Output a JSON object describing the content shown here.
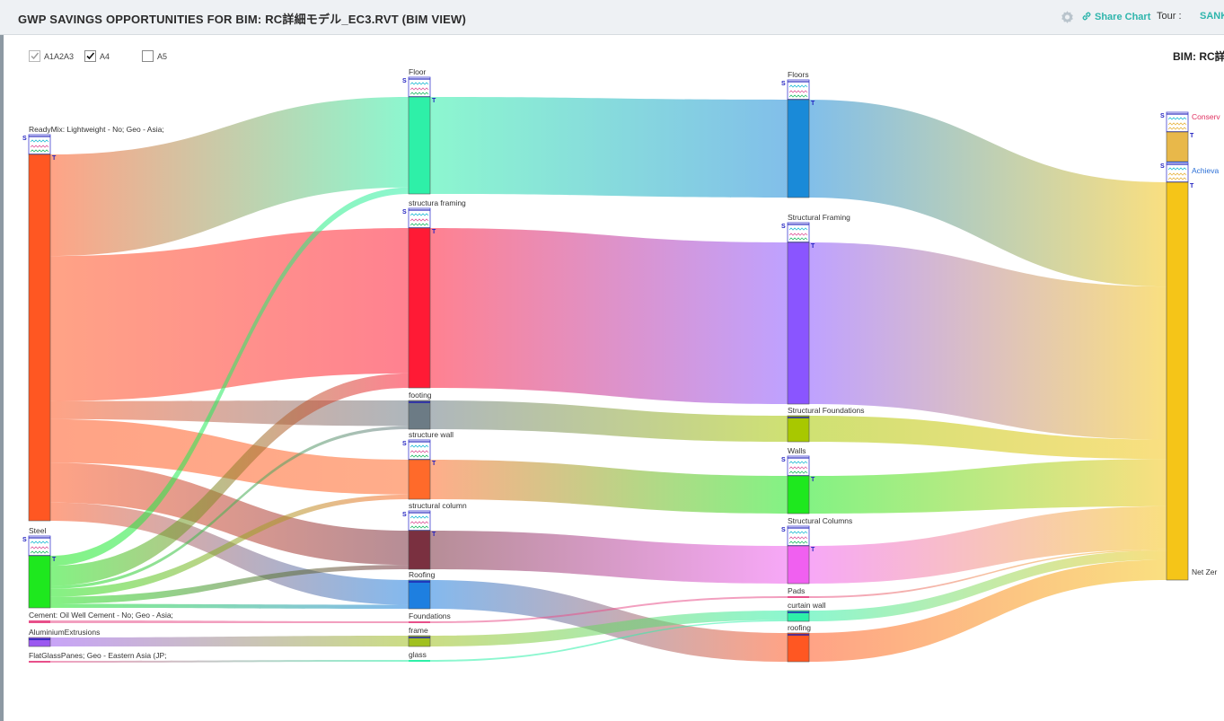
{
  "header": {
    "title": "GWP SAVINGS OPPORTUNITIES FOR BIM: RC詳細モデル_EC3.RVT (BIM VIEW)",
    "share_label": "Share Chart",
    "tour_label": "Tour :",
    "tour_value": "SANK",
    "accent_color": "#2fb5ac"
  },
  "filters": [
    {
      "label": "A1A2A3",
      "checked": true,
      "disabled": true
    },
    {
      "label": "A4",
      "checked": true,
      "disabled": false
    },
    {
      "label": "A5",
      "checked": false,
      "disabled": false
    }
  ],
  "bim_title": "BIM: RC詳",
  "chart_data": {
    "type": "sankey",
    "marker_labels": {
      "source": "S",
      "target": "T"
    },
    "nodes": [
      {
        "id": "readymix",
        "label": "ReadyMix: Lightweight - No; Geo - Asia;",
        "column": 0,
        "color": "#ff5722"
      },
      {
        "id": "steel",
        "label": "Steel",
        "column": 0,
        "color": "#1ee81e"
      },
      {
        "id": "cement",
        "label": "Cement: Oil Well Cement - No; Geo - Asia;",
        "column": 0,
        "color": "#e8508a"
      },
      {
        "id": "alu",
        "label": "AluminiumExtrusions",
        "column": 0,
        "color": "#9b59f0"
      },
      {
        "id": "glass0",
        "label": "FlatGlassPanes; Geo - Eastern Asia (JP;",
        "column": 0,
        "color": "#e8508a"
      },
      {
        "id": "floor",
        "label": "Floor",
        "column": 1,
        "color": "#2ef0a8"
      },
      {
        "id": "sframing",
        "label": "structura framing",
        "column": 1,
        "color": "#ff1a35"
      },
      {
        "id": "footing",
        "label": "footing",
        "column": 1,
        "color": "#6c7b85"
      },
      {
        "id": "swall",
        "label": "structure wall",
        "column": 1,
        "color": "#ff6a2a"
      },
      {
        "id": "scolumn",
        "label": "structural column",
        "column": 1,
        "color": "#7a3040"
      },
      {
        "id": "roofing1",
        "label": "Roofing",
        "column": 1,
        "color": "#1e7fe0"
      },
      {
        "id": "foundations",
        "label": "Foundations",
        "column": 1,
        "color": "#e8508a"
      },
      {
        "id": "frame",
        "label": "frame",
        "column": 1,
        "color": "#a0c020"
      },
      {
        "id": "glass1",
        "label": "glass",
        "column": 1,
        "color": "#2ef0a8"
      },
      {
        "id": "floors",
        "label": "Floors",
        "column": 2,
        "color": "#1a8ad8"
      },
      {
        "id": "sframing2",
        "label": "Structural Framing",
        "column": 2,
        "color": "#8a55ff"
      },
      {
        "id": "sfound",
        "label": "Structural Foundations",
        "column": 2,
        "color": "#a8c800"
      },
      {
        "id": "walls",
        "label": "Walls",
        "column": 2,
        "color": "#1ee81e"
      },
      {
        "id": "scolumns",
        "label": "Structural Columns",
        "column": 2,
        "color": "#f060f0"
      },
      {
        "id": "pads",
        "label": "Pads",
        "column": 2,
        "color": "#e8508a"
      },
      {
        "id": "cwall",
        "label": "curtain wall",
        "column": 2,
        "color": "#2ef0a8"
      },
      {
        "id": "roofing2",
        "label": "roofing",
        "column": 2,
        "color": "#ff5722"
      },
      {
        "id": "conserv",
        "label": "Conserv",
        "column": 3,
        "color": "#e8b84a"
      },
      {
        "id": "achieva",
        "label": "Achieva",
        "column": 3,
        "color": "#2b6fd6"
      },
      {
        "id": "netzero",
        "label": "Net Zer",
        "column": 3,
        "color": "#f5c518"
      }
    ],
    "links": [
      {
        "source": "readymix",
        "target": "floor",
        "value": 14
      },
      {
        "source": "readymix",
        "target": "sframing",
        "value": 20
      },
      {
        "source": "readymix",
        "target": "footing",
        "value": 2.5
      },
      {
        "source": "readymix",
        "target": "swall",
        "value": 6
      },
      {
        "source": "readymix",
        "target": "scolumn",
        "value": 5.5
      },
      {
        "source": "readymix",
        "target": "roofing1",
        "value": 2.5
      },
      {
        "source": "steel",
        "target": "floor",
        "value": 1
      },
      {
        "source": "steel",
        "target": "sframing",
        "value": 2
      },
      {
        "source": "steel",
        "target": "footing",
        "value": 0.3
      },
      {
        "source": "steel",
        "target": "swall",
        "value": 0.8
      },
      {
        "source": "steel",
        "target": "scolumn",
        "value": 0.7
      },
      {
        "source": "steel",
        "target": "roofing1",
        "value": 0.4
      },
      {
        "source": "cement",
        "target": "foundations",
        "value": 0.15
      },
      {
        "source": "alu",
        "target": "frame",
        "value": 1.2
      },
      {
        "source": "glass0",
        "target": "glass1",
        "value": 0.15
      },
      {
        "source": "floor",
        "target": "floors",
        "value": 15
      },
      {
        "source": "sframing",
        "target": "sframing2",
        "value": 22
      },
      {
        "source": "footing",
        "target": "sfound",
        "value": 2.8
      },
      {
        "source": "swall",
        "target": "walls",
        "value": 6.8
      },
      {
        "source": "scolumn",
        "target": "scolumns",
        "value": 6.2
      },
      {
        "source": "roofing1",
        "target": "roofing2",
        "value": 2.9
      },
      {
        "source": "foundations",
        "target": "pads",
        "value": 0.15
      },
      {
        "source": "frame",
        "target": "cwall",
        "value": 1.2
      },
      {
        "source": "glass1",
        "target": "cwall",
        "value": 0.15
      },
      {
        "source": "floors",
        "target": "netzero",
        "value": 15
      },
      {
        "source": "sframing2",
        "target": "netzero",
        "value": 22
      },
      {
        "source": "sfound",
        "target": "netzero",
        "value": 2.8
      },
      {
        "source": "walls",
        "target": "netzero",
        "value": 6.8
      },
      {
        "source": "scolumns",
        "target": "netzero",
        "value": 6.2
      },
      {
        "source": "pads",
        "target": "netzero",
        "value": 0.15
      },
      {
        "source": "cwall",
        "target": "netzero",
        "value": 1.35
      },
      {
        "source": "roofing2",
        "target": "netzero",
        "value": 2.9
      }
    ]
  }
}
